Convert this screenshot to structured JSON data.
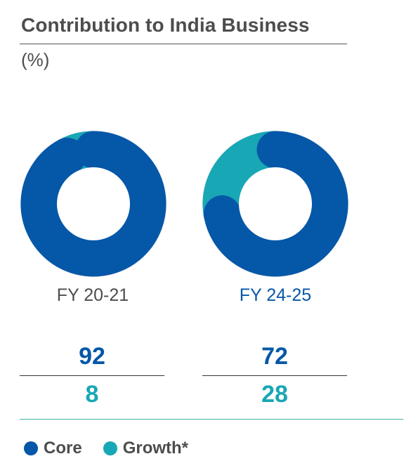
{
  "header": {
    "title": "Contribution to India Business",
    "subtitle": "(%)"
  },
  "colors": {
    "core": "#0557a8",
    "growth": "#18a7b5",
    "ring_bg": "#dcdfe2",
    "period_1": "#4d4d4d",
    "period_2": "#0557a8"
  },
  "chart_data": {
    "type": "pie",
    "title": "Contribution to India Business",
    "subtitle": "(%)",
    "categories": [
      "FY 20-21",
      "FY 24-25"
    ],
    "series": [
      {
        "name": "Core",
        "values": [
          92,
          72
        ]
      },
      {
        "name": "Growth*",
        "values": [
          8,
          28
        ]
      }
    ],
    "legend": "bottom-left"
  },
  "periods": [
    {
      "label": "FY 20-21",
      "core": "92",
      "growth": "8"
    },
    {
      "label": "FY 24-25",
      "core": "72",
      "growth": "28"
    }
  ],
  "legend": {
    "core_label": "Core",
    "growth_label": "Growth*"
  }
}
